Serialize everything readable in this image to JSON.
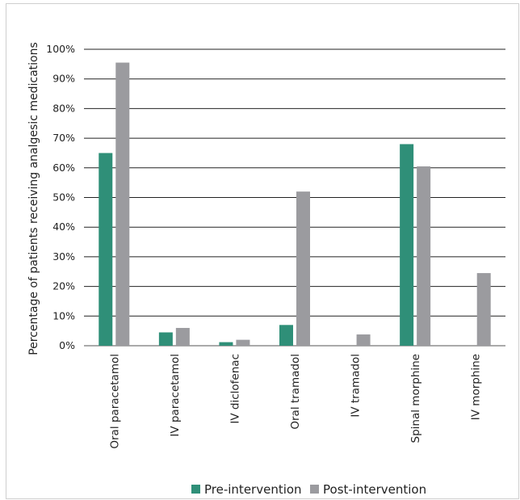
{
  "chart_data": {
    "type": "bar",
    "title": "",
    "xlabel": "",
    "ylabel": "Percentage of patients receiving analgesic medications",
    "ylim": [
      0,
      100
    ],
    "yticks": [
      "0%",
      "10%",
      "20%",
      "30%",
      "40%",
      "50%",
      "60%",
      "70%",
      "80%",
      "90%",
      "100%"
    ],
    "categories": [
      "Oral paracetamol",
      "IV paracetamol",
      "IV diclofenac",
      "Oral tramadol",
      "IV tramadol",
      "Spinal morphine",
      "IV morphine"
    ],
    "series": [
      {
        "name": "Pre-intervention",
        "color": "#2f8f78",
        "values": [
          65,
          4.5,
          1.2,
          7,
          0,
          68,
          0
        ]
      },
      {
        "name": "Post-intervention",
        "color": "#9b9b9f",
        "values": [
          95.5,
          6,
          2,
          52,
          3.8,
          60.5,
          24.5
        ]
      }
    ],
    "grid": true,
    "legend_position": "bottom"
  }
}
